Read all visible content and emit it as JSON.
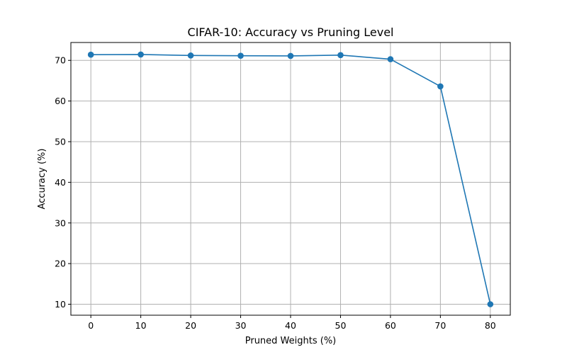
{
  "chart_data": {
    "type": "line",
    "title": "CIFAR-10: Accuracy vs Pruning Level",
    "xlabel": "Pruned Weights (%)",
    "ylabel": "Accuracy (%)",
    "x": [
      0,
      10,
      20,
      30,
      40,
      50,
      60,
      70,
      80
    ],
    "series": [
      {
        "values": [
          71.4,
          71.45,
          71.2,
          71.15,
          71.1,
          71.3,
          70.3,
          63.6,
          10.0
        ]
      }
    ],
    "xlim": [
      -4,
      84
    ],
    "ylim": [
      7.3,
      74.4
    ],
    "xticks": [
      0,
      10,
      20,
      30,
      40,
      50,
      60,
      70,
      80
    ],
    "yticks": [
      10,
      20,
      30,
      40,
      50,
      60,
      70
    ],
    "grid": true,
    "line_color": "#1f77b4",
    "marker": "circle"
  }
}
